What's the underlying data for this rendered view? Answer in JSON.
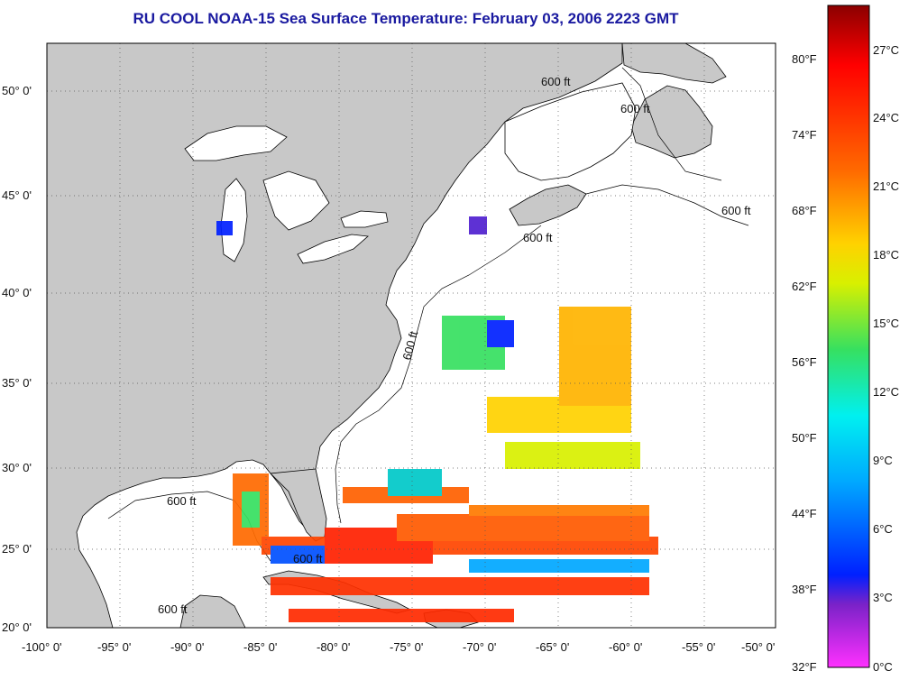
{
  "title": "RU COOL  NOAA-15  Sea Surface Temperature:  February 03, 2006 2223 GMT",
  "map": {
    "lon_ticks": [
      "-100° 0'",
      "-95° 0'",
      "-90° 0'",
      "-85° 0'",
      "-80° 0'",
      "-75° 0'",
      "-70° 0'",
      "-65° 0'",
      "-60° 0'",
      "-55° 0'",
      "-50° 0'"
    ],
    "lat_ticks": [
      "50° 0'",
      "45° 0'",
      "40° 0'",
      "35° 0'",
      "30° 0'",
      "25° 0'",
      "20° 0'"
    ],
    "isobath_labels": [
      "600 ft",
      "600 ft",
      "600 ft",
      "600 ft",
      "600 ft",
      "600 ft",
      "600 ft",
      "600 ft"
    ],
    "colors": {
      "land": "#c8c8c8",
      "water": "#ffffff",
      "frame": "#000000"
    }
  },
  "colorbar": {
    "f_labels": [
      "80°F",
      "74°F",
      "68°F",
      "62°F",
      "56°F",
      "50°F",
      "44°F",
      "38°F",
      "32°F"
    ],
    "c_labels": [
      "27°C",
      "24°C",
      "21°C",
      "18°C",
      "15°C",
      "12°C",
      "9°C",
      "6°C",
      "3°C",
      "0°C"
    ],
    "colors": [
      "#8b0000",
      "#ff0000",
      "#ff6a00",
      "#ffd200",
      "#d8f000",
      "#36e060",
      "#00f0f0",
      "#00a8ff",
      "#0020ff",
      "#7a22c8",
      "#ff30ff"
    ]
  }
}
